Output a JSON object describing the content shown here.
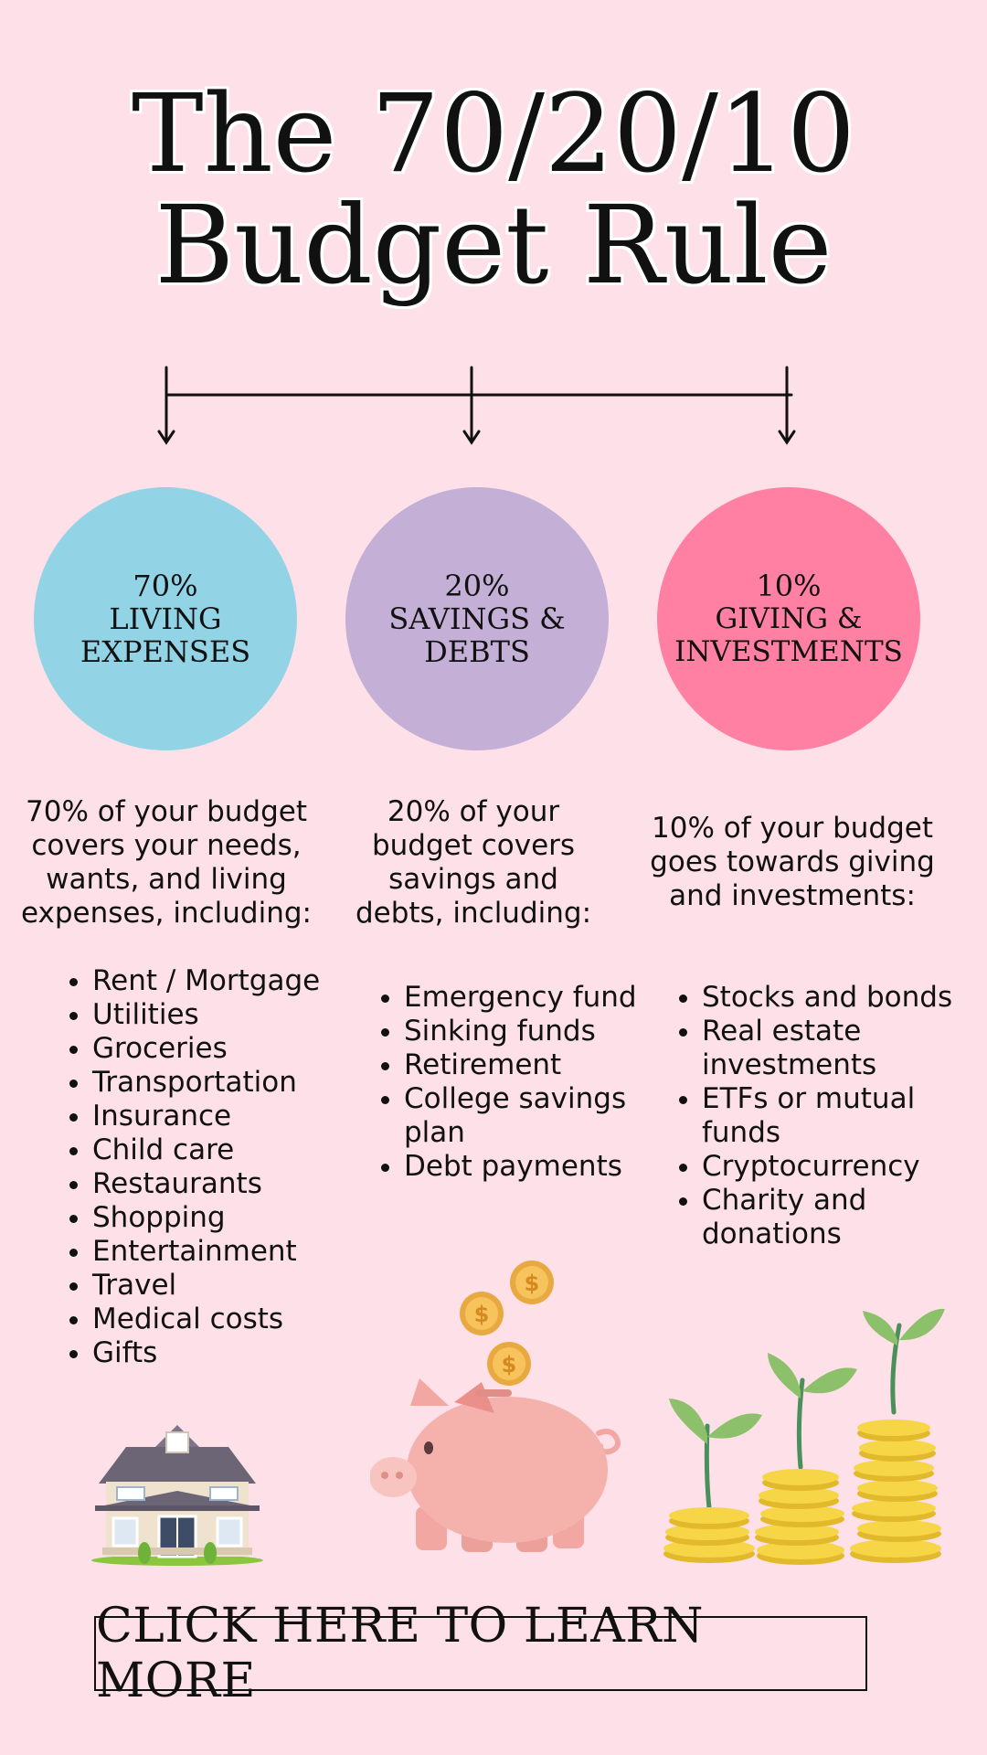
{
  "title": {
    "line1": "The 70/20/10",
    "line2": "Budget Rule"
  },
  "categories": [
    {
      "percent": "70%",
      "label": "LIVING\nEXPENSES",
      "color": "#92d4e6",
      "description": "70% of your budget\ncovers your needs,\nwants, and living\nexpenses, including:",
      "items": [
        "Rent / Mortgage",
        "Utilities",
        "Groceries",
        "Transportation",
        "Insurance",
        "Child care",
        "Restaurants",
        "Shopping",
        "Entertainment",
        "Travel",
        "Medical costs",
        "Gifts"
      ]
    },
    {
      "percent": "20%",
      "label": "SAVINGS &\nDEBTS",
      "color": "#c4afd6",
      "description": "20% of your\nbudget covers\nsavings and\ndebts, including:",
      "items": [
        "Emergency fund",
        "Sinking funds",
        "Retirement",
        "College savings plan",
        "Debt payments"
      ]
    },
    {
      "percent": "10%",
      "label": "GIVING &\nINVESTMENTS",
      "color": "#ff80a2",
      "description": "10% of your budget\ngoes towards giving\nand investments:",
      "items": [
        "Stocks and bonds",
        "Real estate investments",
        "ETFs or mutual funds",
        "Cryptocurrency",
        "Charity and donations"
      ]
    }
  ],
  "icons": [
    "house-icon",
    "piggy-bank-icon",
    "coin-icon",
    "money-plant-icon"
  ],
  "cta": {
    "label": "CLICK HERE TO LEARN MORE"
  },
  "colors": {
    "background": "#fde0e8",
    "text": "#111111"
  }
}
